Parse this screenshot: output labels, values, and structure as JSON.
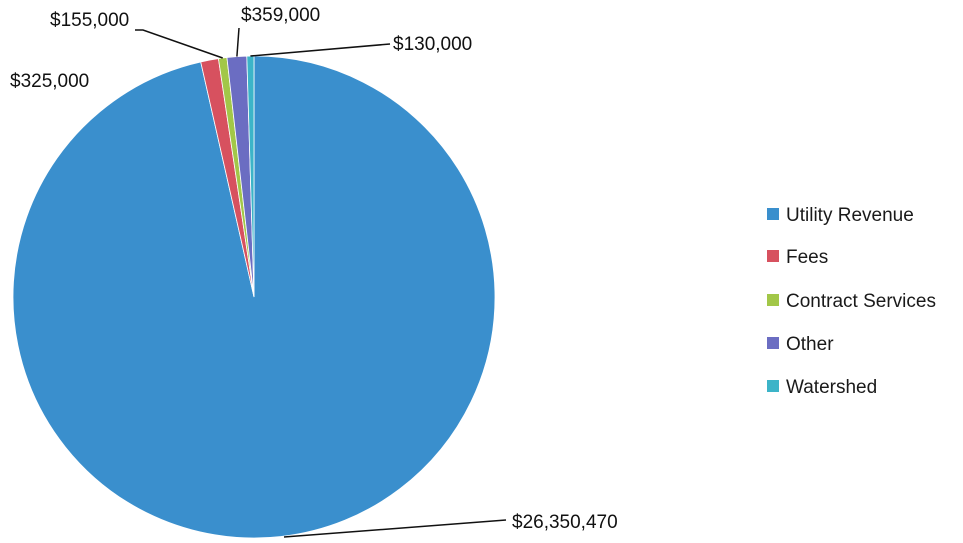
{
  "chart_data": {
    "type": "pie",
    "title": "",
    "categories": [
      "Utility Revenue",
      "Fees",
      "Contract Services",
      "Other",
      "Watershed"
    ],
    "values": [
      26350470,
      325000,
      155000,
      359000,
      130000
    ],
    "labels": [
      "$26,350,470",
      "$325,000",
      "$155,000",
      "$359,000",
      "$130,000"
    ],
    "colors": [
      "#3a8fcd",
      "#d7515f",
      "#a2c748",
      "#6b6dc2",
      "#3cb4c8"
    ],
    "legend": {
      "position": "right",
      "entries": [
        "Utility Revenue",
        "Fees",
        "Contract Services",
        "Other",
        "Watershed"
      ]
    },
    "grid": false
  }
}
